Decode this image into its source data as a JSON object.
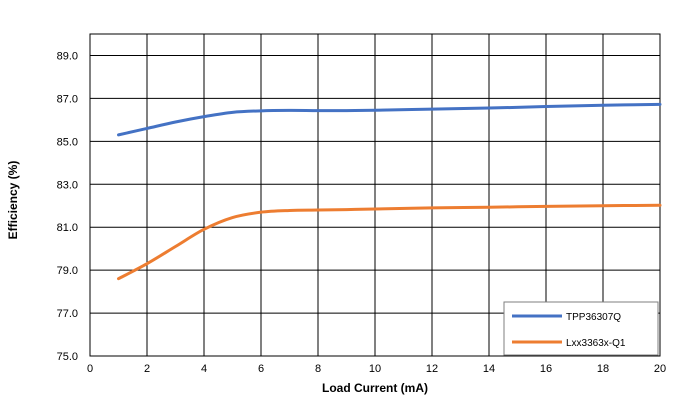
{
  "chart_data": {
    "type": "line",
    "title": "",
    "xlabel": "Load Current (mA)",
    "ylabel": "Efficiency (%)",
    "xlim": [
      0,
      20
    ],
    "ylim": [
      75.0,
      90.0
    ],
    "xticks": [
      0,
      2,
      4,
      6,
      8,
      10,
      12,
      14,
      16,
      18,
      20
    ],
    "yticks": [
      "75.0",
      "77.0",
      "79.0",
      "81.0",
      "83.0",
      "85.0",
      "87.0",
      "89.0"
    ],
    "grid": true,
    "legend_position": "bottom-right",
    "series": [
      {
        "name": "TPP36307Q",
        "color": "#4472C4",
        "x": [
          1,
          2,
          3,
          4,
          5,
          6,
          7,
          8,
          9,
          10,
          12,
          14,
          16,
          18,
          20
        ],
        "y": [
          85.3,
          85.6,
          85.9,
          86.15,
          86.35,
          86.42,
          86.44,
          86.43,
          86.43,
          86.45,
          86.5,
          86.55,
          86.62,
          86.68,
          86.72
        ]
      },
      {
        "name": "Lxx3363x-Q1",
        "color": "#ED7D31",
        "x": [
          1,
          2,
          3,
          4,
          5,
          6,
          7,
          8,
          9,
          10,
          12,
          14,
          16,
          18,
          20
        ],
        "y": [
          78.6,
          79.3,
          80.1,
          80.9,
          81.45,
          81.7,
          81.78,
          81.8,
          81.82,
          81.85,
          81.9,
          81.93,
          81.97,
          82.0,
          82.02
        ]
      }
    ]
  }
}
